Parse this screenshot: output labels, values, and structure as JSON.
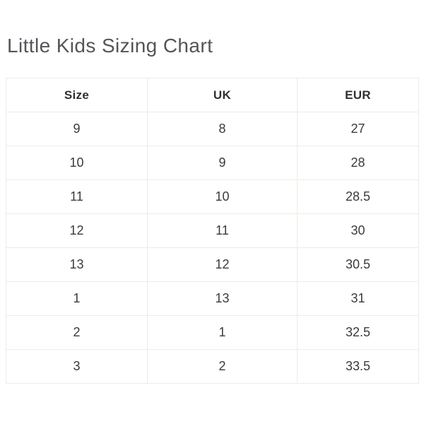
{
  "page": {
    "title": "Little Kids Sizing Chart"
  },
  "table": {
    "headers": [
      "Size",
      "UK",
      "EUR"
    ],
    "rows": [
      [
        "9",
        "8",
        "27"
      ],
      [
        "10",
        "9",
        "28"
      ],
      [
        "11",
        "10",
        "28.5"
      ],
      [
        "12",
        "11",
        "30"
      ],
      [
        "13",
        "12",
        "30.5"
      ],
      [
        "1",
        "13",
        "31"
      ],
      [
        "2",
        "1",
        "32.5"
      ],
      [
        "3",
        "2",
        "33.5"
      ]
    ]
  },
  "chart_data": {
    "type": "table",
    "title": "Little Kids Sizing Chart",
    "columns": [
      "Size",
      "UK",
      "EUR"
    ],
    "rows": [
      [
        "9",
        "8",
        "27"
      ],
      [
        "10",
        "9",
        "28"
      ],
      [
        "11",
        "10",
        "28.5"
      ],
      [
        "12",
        "11",
        "30"
      ],
      [
        "13",
        "12",
        "30.5"
      ],
      [
        "1",
        "13",
        "31"
      ],
      [
        "2",
        "1",
        "32.5"
      ],
      [
        "3",
        "2",
        "33.5"
      ]
    ]
  },
  "colors": {
    "background": "#ffffff",
    "border": "#eeece7",
    "title_text": "#54555a",
    "header_text": "#303032",
    "cell_text": "#3b3b3d"
  }
}
